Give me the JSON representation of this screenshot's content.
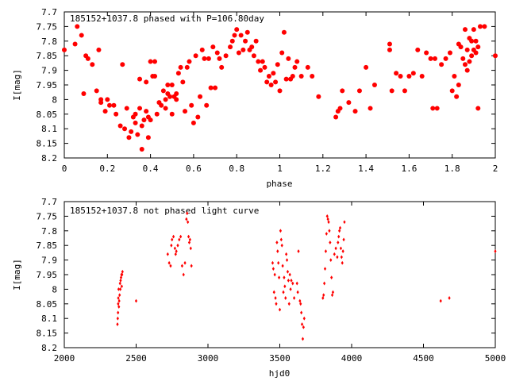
{
  "chart_data": [
    {
      "type": "scatter",
      "title": "185152+1037.8 phased with P=106.80day",
      "xlabel": "phase",
      "ylabel": "I[mag]",
      "xlim": [
        0,
        2
      ],
      "ylim": [
        8.2,
        7.7
      ],
      "y_inverted": true,
      "xticks": [
        "0",
        "0.2",
        "0.4",
        "0.6",
        "0.8",
        "1",
        "1.2",
        "1.4",
        "1.6",
        "1.8",
        "2"
      ],
      "yticks": [
        "7.7",
        "7.75",
        "7.8",
        "7.85",
        "7.9",
        "7.95",
        "8",
        "8.05",
        "8.1",
        "8.15",
        "8.2"
      ],
      "grid": false,
      "marker": "filled-circle",
      "color": "#ff0000",
      "points": [
        [
          0.0,
          7.83
        ],
        [
          0.05,
          7.81
        ],
        [
          0.06,
          7.75
        ],
        [
          0.08,
          7.78
        ],
        [
          0.09,
          7.98
        ],
        [
          0.1,
          7.85
        ],
        [
          0.11,
          7.86
        ],
        [
          0.13,
          7.88
        ],
        [
          0.15,
          7.97
        ],
        [
          0.16,
          7.83
        ],
        [
          0.17,
          8.0
        ],
        [
          0.17,
          8.01
        ],
        [
          0.19,
          8.04
        ],
        [
          0.2,
          8.0
        ],
        [
          0.21,
          8.02
        ],
        [
          0.23,
          8.02
        ],
        [
          0.24,
          8.05
        ],
        [
          0.26,
          8.09
        ],
        [
          0.27,
          7.88
        ],
        [
          0.28,
          8.1
        ],
        [
          0.29,
          8.03
        ],
        [
          0.3,
          8.13
        ],
        [
          0.31,
          8.11
        ],
        [
          0.32,
          8.06
        ],
        [
          0.33,
          8.05
        ],
        [
          0.33,
          8.08
        ],
        [
          0.34,
          8.12
        ],
        [
          0.35,
          8.03
        ],
        [
          0.35,
          7.93
        ],
        [
          0.36,
          8.17
        ],
        [
          0.36,
          8.09
        ],
        [
          0.37,
          8.07
        ],
        [
          0.38,
          8.04
        ],
        [
          0.38,
          7.94
        ],
        [
          0.39,
          8.06
        ],
        [
          0.39,
          8.13
        ],
        [
          0.4,
          7.87
        ],
        [
          0.4,
          8.07
        ],
        [
          0.41,
          7.92
        ],
        [
          0.42,
          7.92
        ],
        [
          0.42,
          7.87
        ],
        [
          0.43,
          8.05
        ],
        [
          0.44,
          8.01
        ],
        [
          0.45,
          8.02
        ],
        [
          0.46,
          7.97
        ],
        [
          0.47,
          8.03
        ],
        [
          0.47,
          8.0
        ],
        [
          0.48,
          7.95
        ],
        [
          0.48,
          7.98
        ],
        [
          0.49,
          7.99
        ],
        [
          0.5,
          7.95
        ],
        [
          0.5,
          8.05
        ],
        [
          0.51,
          7.99
        ],
        [
          0.52,
          8.0
        ],
        [
          0.52,
          7.98
        ],
        [
          0.53,
          7.91
        ],
        [
          0.54,
          7.89
        ],
        [
          0.55,
          7.94
        ],
        [
          0.56,
          8.04
        ],
        [
          0.57,
          7.89
        ],
        [
          0.58,
          7.87
        ],
        [
          0.59,
          8.02
        ],
        [
          0.6,
          8.08
        ],
        [
          0.61,
          7.85
        ],
        [
          0.62,
          8.06
        ],
        [
          0.63,
          7.99
        ],
        [
          0.64,
          7.83
        ],
        [
          0.65,
          7.86
        ],
        [
          0.66,
          8.02
        ],
        [
          0.67,
          7.86
        ],
        [
          0.68,
          7.96
        ],
        [
          0.69,
          7.82
        ],
        [
          0.7,
          7.96
        ],
        [
          0.71,
          7.84
        ],
        [
          0.72,
          7.86
        ],
        [
          0.73,
          7.89
        ],
        [
          0.75,
          7.85
        ],
        [
          0.77,
          7.82
        ],
        [
          0.78,
          7.8
        ],
        [
          0.79,
          7.78
        ],
        [
          0.8,
          7.76
        ],
        [
          0.81,
          7.84
        ],
        [
          0.82,
          7.78
        ],
        [
          0.83,
          7.83
        ],
        [
          0.84,
          7.8
        ],
        [
          0.85,
          7.77
        ],
        [
          0.86,
          7.83
        ],
        [
          0.87,
          7.82
        ],
        [
          0.88,
          7.85
        ],
        [
          0.89,
          7.8
        ],
        [
          0.9,
          7.87
        ],
        [
          0.91,
          7.9
        ],
        [
          0.92,
          7.87
        ],
        [
          0.93,
          7.89
        ],
        [
          0.94,
          7.94
        ],
        [
          0.95,
          7.92
        ],
        [
          0.96,
          7.95
        ],
        [
          0.97,
          7.91
        ],
        [
          0.98,
          7.94
        ],
        [
          0.99,
          7.88
        ],
        [
          1.0,
          7.97
        ],
        [
          1.01,
          7.84
        ],
        [
          1.02,
          7.77
        ],
        [
          1.03,
          7.93
        ],
        [
          1.04,
          7.86
        ],
        [
          1.05,
          7.93
        ],
        [
          1.06,
          7.92
        ],
        [
          1.07,
          7.89
        ],
        [
          1.08,
          7.87
        ],
        [
          1.1,
          7.92
        ],
        [
          1.13,
          7.89
        ],
        [
          1.15,
          7.92
        ],
        [
          1.18,
          7.99
        ],
        [
          1.26,
          8.06
        ],
        [
          1.27,
          8.04
        ],
        [
          1.28,
          8.03
        ],
        [
          1.29,
          7.97
        ],
        [
          1.32,
          8.01
        ],
        [
          1.35,
          8.04
        ],
        [
          1.37,
          7.97
        ],
        [
          1.4,
          7.89
        ],
        [
          1.42,
          8.03
        ],
        [
          1.44,
          7.95
        ],
        [
          1.51,
          7.81
        ],
        [
          1.51,
          7.83
        ],
        [
          1.52,
          7.97
        ],
        [
          1.54,
          7.91
        ],
        [
          1.56,
          7.92
        ],
        [
          1.58,
          7.97
        ],
        [
          1.6,
          7.92
        ],
        [
          1.62,
          7.91
        ],
        [
          1.64,
          7.83
        ],
        [
          1.66,
          7.92
        ],
        [
          1.68,
          7.84
        ],
        [
          1.7,
          7.86
        ],
        [
          1.71,
          8.03
        ],
        [
          1.72,
          7.86
        ],
        [
          1.73,
          8.03
        ],
        [
          1.75,
          7.88
        ],
        [
          1.77,
          7.86
        ],
        [
          1.79,
          7.84
        ],
        [
          1.8,
          7.97
        ],
        [
          1.81,
          7.92
        ],
        [
          1.82,
          7.99
        ],
        [
          1.83,
          7.81
        ],
        [
          1.83,
          7.95
        ],
        [
          1.84,
          7.82
        ],
        [
          1.85,
          7.86
        ],
        [
          1.86,
          7.76
        ],
        [
          1.86,
          7.88
        ],
        [
          1.87,
          7.83
        ],
        [
          1.87,
          7.9
        ],
        [
          1.88,
          7.87
        ],
        [
          1.88,
          7.79
        ],
        [
          1.89,
          7.8
        ],
        [
          1.89,
          7.85
        ],
        [
          1.9,
          7.83
        ],
        [
          1.9,
          7.76
        ],
        [
          1.91,
          7.8
        ],
        [
          1.91,
          7.84
        ],
        [
          1.92,
          8.03
        ],
        [
          1.92,
          7.82
        ],
        [
          1.93,
          7.75
        ],
        [
          1.95,
          7.75
        ],
        [
          2.0,
          7.85
        ]
      ]
    },
    {
      "type": "scatter",
      "title": "185152+1037.8 not phased light curve",
      "xlabel": "hjd0",
      "ylabel": "I[mag]",
      "xlim": [
        2000,
        5000
      ],
      "ylim": [
        8.2,
        7.7
      ],
      "y_inverted": true,
      "xticks": [
        "2000",
        "2500",
        "3000",
        "3500",
        "4000",
        "4500",
        "5000"
      ],
      "yticks": [
        "7.7",
        "7.75",
        "7.8",
        "7.85",
        "7.9",
        "7.95",
        "8",
        "8.05",
        "8.1",
        "8.15",
        "8.2"
      ],
      "grid": false,
      "marker": "small-diamond",
      "color": "#ff0000",
      "points": [
        [
          2370,
          8.12
        ],
        [
          2372,
          8.1
        ],
        [
          2374,
          8.08
        ],
        [
          2375,
          8.05
        ],
        [
          2376,
          8.03
        ],
        [
          2378,
          8.0
        ],
        [
          2380,
          8.06
        ],
        [
          2382,
          8.04
        ],
        [
          2385,
          8.02
        ],
        [
          2388,
          7.98
        ],
        [
          2390,
          8.0
        ],
        [
          2392,
          7.97
        ],
        [
          2395,
          7.96
        ],
        [
          2398,
          7.95
        ],
        [
          2400,
          7.99
        ],
        [
          2402,
          7.95
        ],
        [
          2405,
          7.94
        ],
        [
          2500,
          8.04
        ],
        [
          2720,
          7.88
        ],
        [
          2730,
          7.91
        ],
        [
          2740,
          7.92
        ],
        [
          2745,
          7.85
        ],
        [
          2750,
          7.83
        ],
        [
          2760,
          7.82
        ],
        [
          2770,
          7.86
        ],
        [
          2775,
          7.88
        ],
        [
          2780,
          7.87
        ],
        [
          2790,
          7.85
        ],
        [
          2800,
          7.83
        ],
        [
          2810,
          7.82
        ],
        [
          2820,
          7.92
        ],
        [
          2830,
          7.95
        ],
        [
          2840,
          7.91
        ],
        [
          2850,
          7.76
        ],
        [
          2855,
          7.74
        ],
        [
          2860,
          7.77
        ],
        [
          2865,
          7.82
        ],
        [
          2870,
          7.84
        ],
        [
          2875,
          7.83
        ],
        [
          2880,
          7.86
        ],
        [
          2885,
          7.92
        ],
        [
          3450,
          7.91
        ],
        [
          3455,
          7.93
        ],
        [
          3460,
          8.01
        ],
        [
          3465,
          7.95
        ],
        [
          3470,
          8.03
        ],
        [
          3475,
          8.05
        ],
        [
          3480,
          7.84
        ],
        [
          3485,
          7.87
        ],
        [
          3490,
          7.91
        ],
        [
          3495,
          7.96
        ],
        [
          3500,
          8.07
        ],
        [
          3505,
          7.8
        ],
        [
          3510,
          7.83
        ],
        [
          3515,
          7.85
        ],
        [
          3520,
          7.92
        ],
        [
          3525,
          8.01
        ],
        [
          3530,
          7.96
        ],
        [
          3535,
          7.99
        ],
        [
          3540,
          8.03
        ],
        [
          3545,
          7.88
        ],
        [
          3550,
          7.9
        ],
        [
          3555,
          7.94
        ],
        [
          3560,
          7.97
        ],
        [
          3565,
          8.05
        ],
        [
          3570,
          7.95
        ],
        [
          3575,
          8.0
        ],
        [
          3580,
          7.97
        ],
        [
          3590,
          7.98
        ],
        [
          3600,
          8.03
        ],
        [
          3620,
          7.98
        ],
        [
          3625,
          8.01
        ],
        [
          3630,
          7.87
        ],
        [
          3640,
          8.04
        ],
        [
          3645,
          8.05
        ],
        [
          3650,
          8.08
        ],
        [
          3655,
          8.12
        ],
        [
          3660,
          8.17
        ],
        [
          3665,
          8.13
        ],
        [
          3670,
          8.1
        ],
        [
          3800,
          8.03
        ],
        [
          3805,
          8.02
        ],
        [
          3810,
          7.98
        ],
        [
          3815,
          7.93
        ],
        [
          3820,
          7.87
        ],
        [
          3825,
          7.81
        ],
        [
          3830,
          7.75
        ],
        [
          3835,
          7.76
        ],
        [
          3840,
          7.77
        ],
        [
          3845,
          7.8
        ],
        [
          3850,
          7.84
        ],
        [
          3855,
          7.9
        ],
        [
          3860,
          7.96
        ],
        [
          3865,
          8.02
        ],
        [
          3870,
          8.01
        ],
        [
          3880,
          7.88
        ],
        [
          3890,
          7.86
        ],
        [
          3900,
          7.89
        ],
        [
          3905,
          7.84
        ],
        [
          3910,
          7.82
        ],
        [
          3915,
          7.8
        ],
        [
          3920,
          7.79
        ],
        [
          3925,
          7.86
        ],
        [
          3930,
          7.89
        ],
        [
          3935,
          7.91
        ],
        [
          3940,
          7.87
        ],
        [
          3945,
          7.83
        ],
        [
          3950,
          7.77
        ],
        [
          4620,
          8.04
        ],
        [
          4680,
          8.03
        ],
        [
          5000,
          7.87
        ]
      ]
    }
  ]
}
